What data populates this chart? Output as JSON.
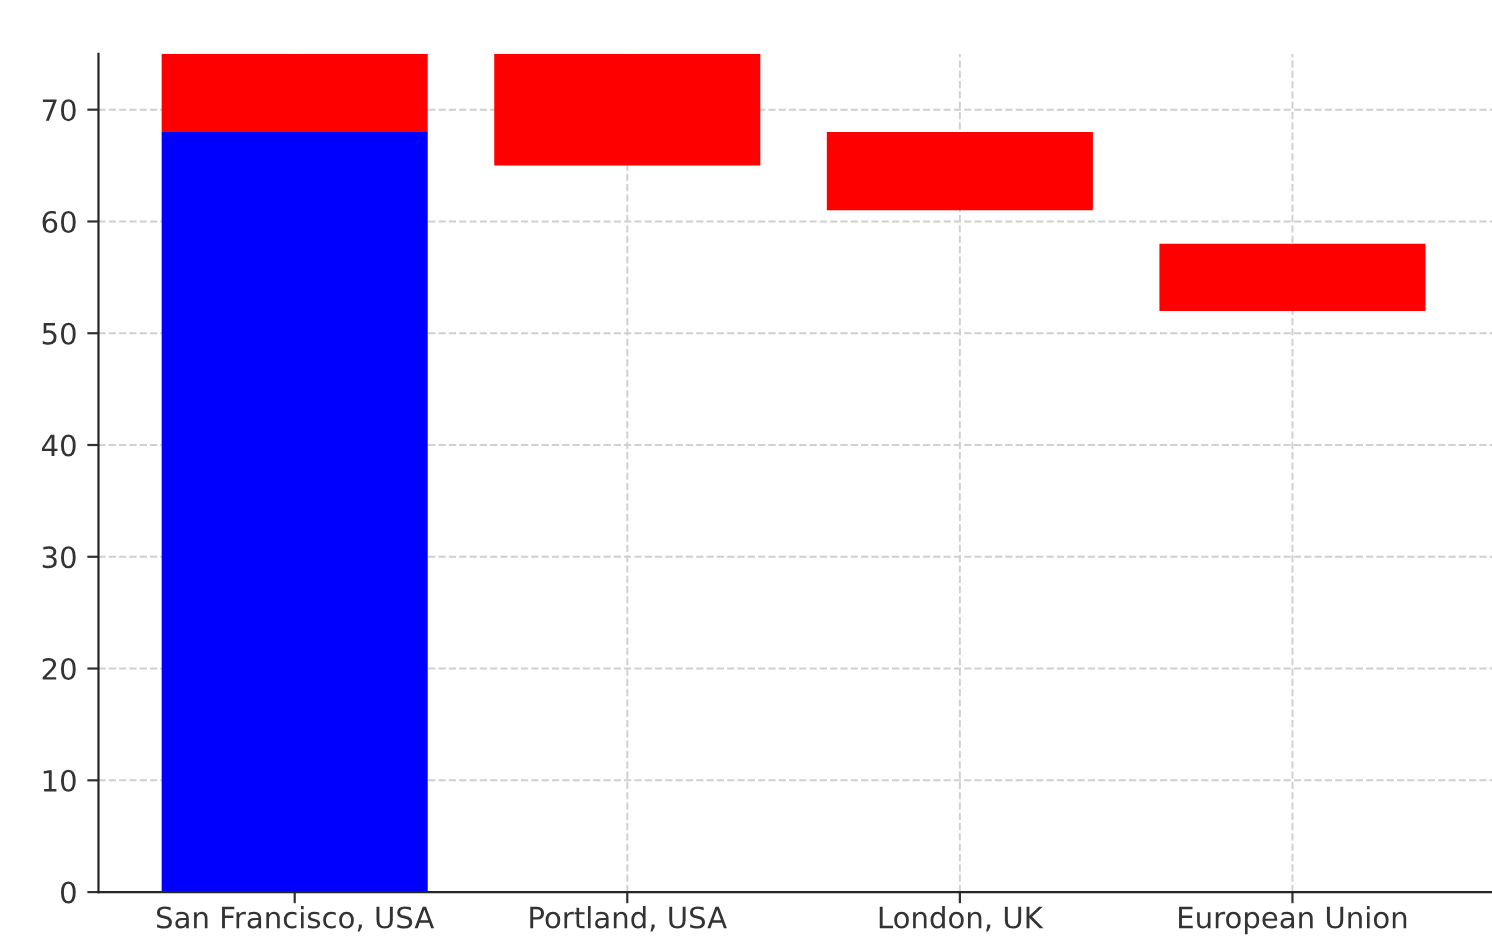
{
  "chart_data": {
    "type": "bar",
    "categories": [
      "San Francisco, USA",
      "Portland, USA",
      "London, UK",
      "European Union"
    ],
    "series": [
      {
        "color": "#0000ff",
        "values": [
          68,
          null,
          null,
          null
        ],
        "base": [
          0,
          null,
          null,
          null
        ]
      },
      {
        "color": "#ff0000",
        "values": [
          7,
          10,
          7,
          6
        ],
        "base": [
          68,
          65,
          61,
          52
        ]
      }
    ],
    "ylim": [
      0,
      75
    ],
    "yticks": [
      0,
      10,
      20,
      30,
      40,
      50,
      60,
      70
    ],
    "grid": true,
    "legend": false
  }
}
